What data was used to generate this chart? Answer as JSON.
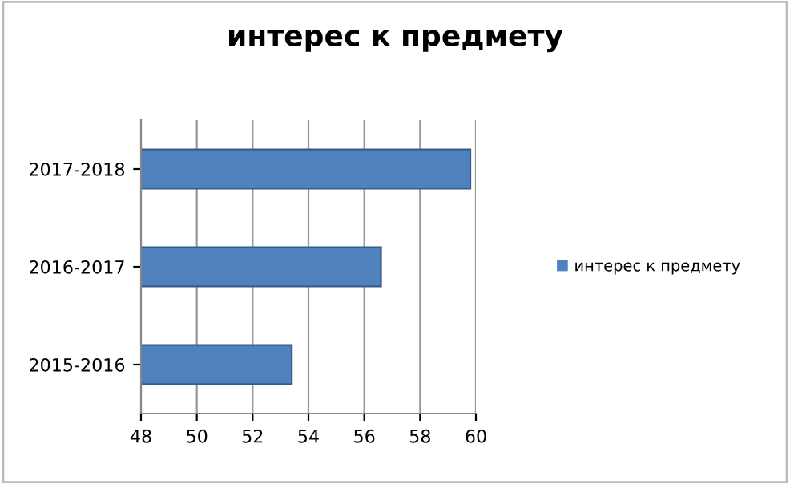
{
  "chart_data": {
    "type": "bar",
    "orientation": "horizontal",
    "title": "интерес к предмету",
    "categories": [
      "2017-2018",
      "2016-2017",
      "2015-2016"
    ],
    "series": [
      {
        "name": "интерес к предмету",
        "color": "#4f81bd",
        "values": [
          59.8,
          56.6,
          53.4
        ]
      }
    ],
    "xlim": [
      48,
      60
    ],
    "xticks": [
      48,
      50,
      52,
      54,
      56,
      58,
      60
    ],
    "grid": "x",
    "legend": "right"
  }
}
